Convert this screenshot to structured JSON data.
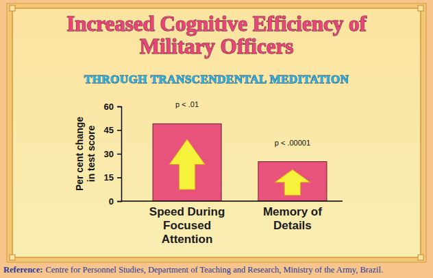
{
  "chart_data": {
    "type": "bar",
    "title": "Increased Cognitive Efficiency of Military Officers",
    "subtitle": "THROUGH TRANSCENDENTAL MEDITATION",
    "y_label": "Per cent change in test score",
    "categories": [
      "Speed During Focused Attention",
      "Memory of Details"
    ],
    "values": [
      49,
      25
    ],
    "annotations": [
      "p < .01",
      "p < .00001"
    ],
    "color": "#e8537b",
    "ylim": [
      0,
      60
    ],
    "yticks": [
      0,
      15,
      30,
      45,
      60
    ],
    "grid": false,
    "source_label": "Reference:",
    "source": "Centre for Personnel Studies, Department of Teaching and Research, Ministry of the Army, Brazil."
  }
}
